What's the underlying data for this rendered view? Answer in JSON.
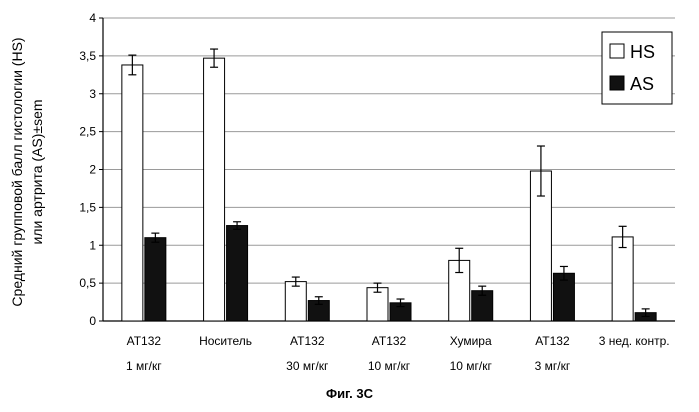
{
  "chart_data": {
    "type": "bar",
    "ylabel_lines": [
      "Средний групповой балл гистологии (HS)",
      "или артрита (AS)±sem"
    ],
    "ylim": [
      0,
      4
    ],
    "yticks": [
      "0",
      "0,5",
      "1",
      "1,5",
      "2",
      "2,5",
      "3",
      "3,5",
      "4"
    ],
    "grid": true,
    "legend_position": "top-right",
    "categories": [
      [
        "AT132",
        "1 мг/кг"
      ],
      [
        "Носитель",
        ""
      ],
      [
        "AT132",
        "30 мг/кг"
      ],
      [
        "AT132",
        "10 мг/кг"
      ],
      [
        "Хумира",
        "10 мг/кг"
      ],
      [
        "AT132",
        "3 мг/кг"
      ],
      [
        "3 нед. контр.",
        ""
      ]
    ],
    "series": [
      {
        "name": "HS",
        "color": "#ffffff",
        "values": [
          3.38,
          3.47,
          0.52,
          0.44,
          0.8,
          1.98,
          1.11
        ],
        "errors": [
          0.13,
          0.12,
          0.06,
          0.06,
          0.16,
          0.33,
          0.14
        ]
      },
      {
        "name": "AS",
        "color": "#111111",
        "values": [
          1.1,
          1.26,
          0.27,
          0.24,
          0.4,
          0.63,
          0.11
        ],
        "errors": [
          0.06,
          0.05,
          0.05,
          0.05,
          0.06,
          0.09,
          0.05
        ]
      }
    ]
  },
  "caption": "Фиг. 3C"
}
